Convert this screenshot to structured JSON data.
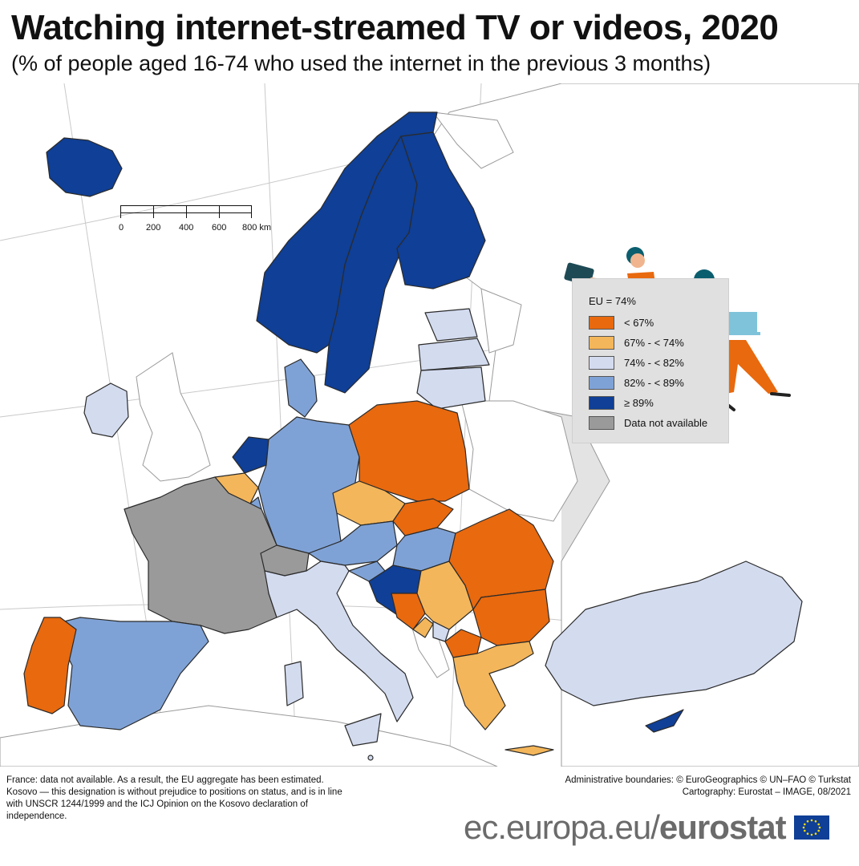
{
  "header": {
    "title": "Watching internet-streamed TV or videos, 2020",
    "subtitle": "(% of people aged 16-74 who used the internet in the previous 3 months)"
  },
  "scale_bar": {
    "labels": [
      "0",
      "200",
      "400",
      "600",
      "800 km"
    ]
  },
  "legend": {
    "title": "EU = 74%",
    "items": [
      {
        "label": "< 67%",
        "color": "#e8690e"
      },
      {
        "label": "67% - < 74%",
        "color": "#f4b65a"
      },
      {
        "label": "74% - < 82%",
        "color": "#d3dbef"
      },
      {
        "label": "82% - < 89%",
        "color": "#7fa2d6"
      },
      {
        "label": "≥ 89%",
        "color": "#0f3f96"
      },
      {
        "label": "Data not available",
        "color": "#9a9a9a"
      }
    ]
  },
  "footnotes": {
    "left": [
      "France: data not available. As a result, the EU aggregate has been estimated.",
      "Kosovo — this designation is without prejudice to positions on status, and is in line with UNSCR 1244/1999 and the ICJ Opinion on the Kosovo declaration of independence."
    ],
    "right": [
      "Administrative boundaries: © EuroGeographics © UN–FAO © Turkstat",
      "Cartography: Eurostat – IMAGE, 08/2021"
    ]
  },
  "branding": {
    "url": "ec.europa.eu/",
    "name": "eurostat"
  },
  "colors": {
    "lt67": "#e8690e",
    "c67_74": "#f4b65a",
    "c74_82": "#d3dbef",
    "c82_89": "#7fa2d6",
    "ge89": "#0f3f96",
    "na": "#9a9a9a",
    "sea": "#ffffff",
    "non_data_land": "#e3e3e3"
  }
}
